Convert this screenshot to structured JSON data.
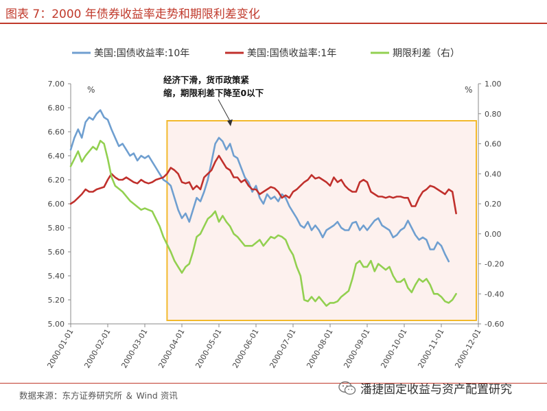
{
  "page": {
    "title": "图表 7：2000 年债券收益率走势和期限利差变化",
    "source": "数据来源：东方证券研究所 ＆ Wind 资讯",
    "watermark": "潘捷固定收益与资产配置研究",
    "watermark_icon": "wechat-icon"
  },
  "colors": {
    "accent": "#c0392b",
    "series_10y": "#6f9fd0",
    "series_1y": "#c0302c",
    "series_spread": "#92d050",
    "highlight_border": "#f2b92c",
    "highlight_fill": "#fdf1ee"
  },
  "chart_data": {
    "type": "line",
    "title": "",
    "legend": [
      "美国:国债收益率:10年",
      "美国:国债收益率:1年",
      "期限利差（右）"
    ],
    "left_axis": {
      "label": "%",
      "ylim": [
        5.0,
        7.0
      ],
      "ticks": [
        "7.00",
        "6.80",
        "6.60",
        "6.40",
        "6.20",
        "6.00",
        "5.80",
        "5.60",
        "5.40",
        "5.20",
        "5.00"
      ]
    },
    "right_axis": {
      "label": "%",
      "ylim": [
        -0.6,
        1.0
      ],
      "ticks": [
        "1.00",
        "0.80",
        "0.60",
        "0.40",
        "0.20",
        "0.00",
        "-0.20",
        "-0.40",
        "-0.60"
      ]
    },
    "x_ticks": [
      "2000-01-01",
      "2000-02-01",
      "2000-03-01",
      "2000-04-01",
      "2000-05-01",
      "2000-06-01",
      "2000-07-01",
      "2000-08-01",
      "2000-09-01",
      "2000-10-01",
      "2000-11-01",
      "2000-12-01"
    ],
    "annotation": {
      "lines": [
        "经济下滑，货币政策紧",
        "缩，期限利差下降至0以下"
      ]
    },
    "highlight_period": {
      "start_month": 2.6,
      "end_month": 11.0
    },
    "x_months": [
      0.0,
      0.1,
      0.2,
      0.3,
      0.4,
      0.5,
      0.6,
      0.7,
      0.8,
      0.9,
      1.0,
      1.1,
      1.2,
      1.3,
      1.4,
      1.5,
      1.6,
      1.7,
      1.8,
      1.9,
      2.0,
      2.1,
      2.2,
      2.3,
      2.4,
      2.5,
      2.6,
      2.7,
      2.8,
      2.9,
      3.0,
      3.1,
      3.2,
      3.3,
      3.4,
      3.5,
      3.6,
      3.7,
      3.8,
      3.9,
      4.0,
      4.1,
      4.2,
      4.3,
      4.4,
      4.5,
      4.6,
      4.7,
      4.8,
      4.9,
      5.0,
      5.1,
      5.2,
      5.3,
      5.4,
      5.5,
      5.6,
      5.7,
      5.8,
      5.9,
      6.0,
      6.1,
      6.2,
      6.3,
      6.4,
      6.5,
      6.6,
      6.7,
      6.8,
      6.9,
      7.0,
      7.1,
      7.2,
      7.3,
      7.4,
      7.5,
      7.6,
      7.7,
      7.8,
      7.9,
      8.0,
      8.1,
      8.2,
      8.3,
      8.4,
      8.5,
      8.6,
      8.7,
      8.8,
      8.9,
      9.0,
      9.1,
      9.2,
      9.3,
      9.4,
      9.5,
      9.6,
      9.7,
      9.8,
      9.9,
      10.0,
      10.1,
      10.2,
      10.3,
      10.4,
      10.5,
      10.6,
      10.7,
      10.8,
      10.9,
      11.0
    ],
    "series": [
      {
        "name": "美国:国债收益率:10年",
        "axis": "left",
        "values": [
          6.45,
          6.55,
          6.62,
          6.55,
          6.68,
          6.72,
          6.7,
          6.75,
          6.78,
          6.72,
          6.7,
          6.62,
          6.55,
          6.48,
          6.5,
          6.45,
          6.4,
          6.42,
          6.36,
          6.4,
          6.38,
          6.4,
          6.35,
          6.3,
          6.25,
          6.2,
          6.18,
          6.15,
          6.05,
          5.95,
          5.88,
          5.92,
          5.85,
          5.95,
          6.05,
          6.02,
          6.1,
          6.2,
          6.35,
          6.5,
          6.55,
          6.52,
          6.45,
          6.5,
          6.4,
          6.38,
          6.3,
          6.22,
          6.18,
          6.1,
          6.15,
          6.05,
          6.0,
          6.08,
          6.04,
          6.06,
          6.02,
          6.08,
          6.05,
          5.98,
          5.93,
          5.88,
          5.82,
          5.8,
          5.85,
          5.78,
          5.82,
          5.78,
          5.72,
          5.78,
          5.8,
          5.82,
          5.85,
          5.8,
          5.78,
          5.78,
          5.84,
          5.85,
          5.78,
          5.82,
          5.78,
          5.82,
          5.86,
          5.88,
          5.82,
          5.8,
          5.78,
          5.72,
          5.74,
          5.78,
          5.8,
          5.86,
          5.8,
          5.74,
          5.7,
          5.72,
          5.7,
          5.62,
          5.62,
          5.68,
          5.65,
          5.58,
          5.52
        ]
      },
      {
        "name": "美国:国债收益率:1年",
        "axis": "left",
        "values": [
          6.0,
          6.02,
          6.05,
          6.08,
          6.12,
          6.1,
          6.1,
          6.12,
          6.13,
          6.14,
          6.2,
          6.25,
          6.22,
          6.2,
          6.2,
          6.22,
          6.2,
          6.18,
          6.17,
          6.2,
          6.18,
          6.17,
          6.18,
          6.2,
          6.21,
          6.22,
          6.25,
          6.3,
          6.28,
          6.25,
          6.18,
          6.17,
          6.18,
          6.12,
          6.15,
          6.12,
          6.22,
          6.25,
          6.28,
          6.35,
          6.4,
          6.35,
          6.3,
          6.28,
          6.22,
          6.22,
          6.18,
          6.2,
          6.15,
          6.12,
          6.12,
          6.08,
          6.1,
          6.12,
          6.14,
          6.13,
          6.1,
          6.05,
          6.07,
          6.05,
          6.1,
          6.12,
          6.15,
          6.18,
          6.2,
          6.24,
          6.21,
          6.22,
          6.2,
          6.18,
          6.15,
          6.22,
          6.18,
          6.2,
          6.15,
          6.12,
          6.1,
          6.1,
          6.18,
          6.2,
          6.18,
          6.1,
          6.08,
          6.06,
          6.06,
          6.05,
          6.06,
          6.05,
          6.06,
          6.06,
          6.05,
          6.05,
          5.98,
          5.98,
          6.05,
          6.1,
          6.12,
          6.15,
          6.14,
          6.12,
          6.1,
          6.08,
          6.12,
          6.1,
          5.92
        ]
      },
      {
        "name": "期限利差（右）",
        "axis": "right",
        "values": [
          0.45,
          0.5,
          0.55,
          0.48,
          0.52,
          0.55,
          0.58,
          0.56,
          0.62,
          0.6,
          0.5,
          0.38,
          0.32,
          0.3,
          0.28,
          0.25,
          0.22,
          0.2,
          0.18,
          0.16,
          0.17,
          0.16,
          0.15,
          0.1,
          0.05,
          -0.02,
          -0.07,
          -0.12,
          -0.18,
          -0.22,
          -0.26,
          -0.22,
          -0.2,
          -0.12,
          -0.02,
          0.0,
          0.05,
          0.1,
          0.12,
          0.15,
          0.08,
          0.12,
          0.08,
          0.05,
          0.0,
          -0.02,
          -0.05,
          -0.08,
          -0.08,
          -0.08,
          -0.06,
          -0.04,
          -0.08,
          -0.05,
          -0.02,
          -0.03,
          -0.01,
          -0.02,
          -0.04,
          -0.1,
          -0.14,
          -0.22,
          -0.28,
          -0.44,
          -0.45,
          -0.42,
          -0.45,
          -0.42,
          -0.45,
          -0.48,
          -0.46,
          -0.46,
          -0.45,
          -0.42,
          -0.4,
          -0.38,
          -0.3,
          -0.2,
          -0.18,
          -0.22,
          -0.22,
          -0.18,
          -0.25,
          -0.2,
          -0.22,
          -0.24,
          -0.22,
          -0.28,
          -0.32,
          -0.32,
          -0.3,
          -0.36,
          -0.39,
          -0.34,
          -0.3,
          -0.32,
          -0.3,
          -0.34,
          -0.4,
          -0.4,
          -0.42,
          -0.45,
          -0.46,
          -0.44,
          -0.4
        ]
      }
    ]
  }
}
